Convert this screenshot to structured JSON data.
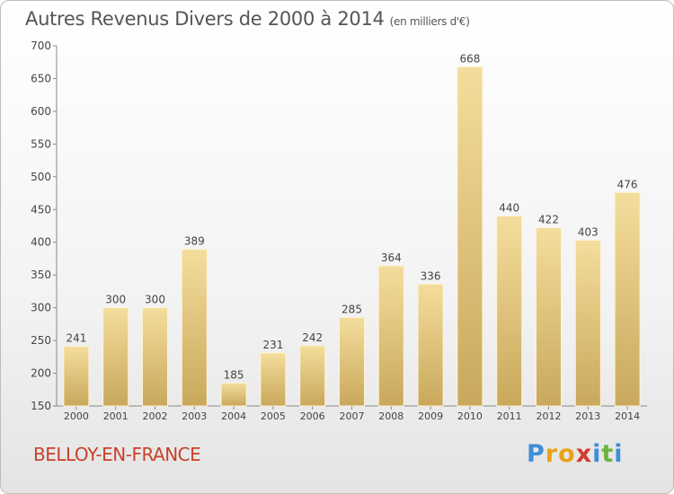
{
  "chart_data": {
    "type": "bar",
    "title": "Autres Revenus Divers de 2000 à 2014",
    "subtitle": "(en milliers d'€)",
    "categories": [
      "2000",
      "2001",
      "2002",
      "2003",
      "2004",
      "2005",
      "2006",
      "2007",
      "2008",
      "2009",
      "2010",
      "2011",
      "2012",
      "2013",
      "2014"
    ],
    "values": [
      241,
      300,
      300,
      389,
      185,
      231,
      242,
      285,
      364,
      336,
      668,
      440,
      422,
      403,
      476
    ],
    "yticks": [
      150,
      200,
      250,
      300,
      350,
      400,
      450,
      500,
      550,
      600,
      650,
      700
    ],
    "ylim": [
      150,
      700
    ],
    "grid": false,
    "bar_color": "#e3c17a"
  },
  "footer": {
    "commune": "BELLOY-EN-FRANCE",
    "logo_letters": [
      {
        "ch": "P",
        "color": "#3d8fd6"
      },
      {
        "ch": "r",
        "color": "#e8a317"
      },
      {
        "ch": "o",
        "color": "#e8a317"
      },
      {
        "ch": "x",
        "color": "#d13b2f"
      },
      {
        "ch": "i",
        "color": "#3d8fd6"
      },
      {
        "ch": "t",
        "color": "#6cb33f"
      },
      {
        "ch": "i",
        "color": "#3d8fd6"
      }
    ]
  }
}
